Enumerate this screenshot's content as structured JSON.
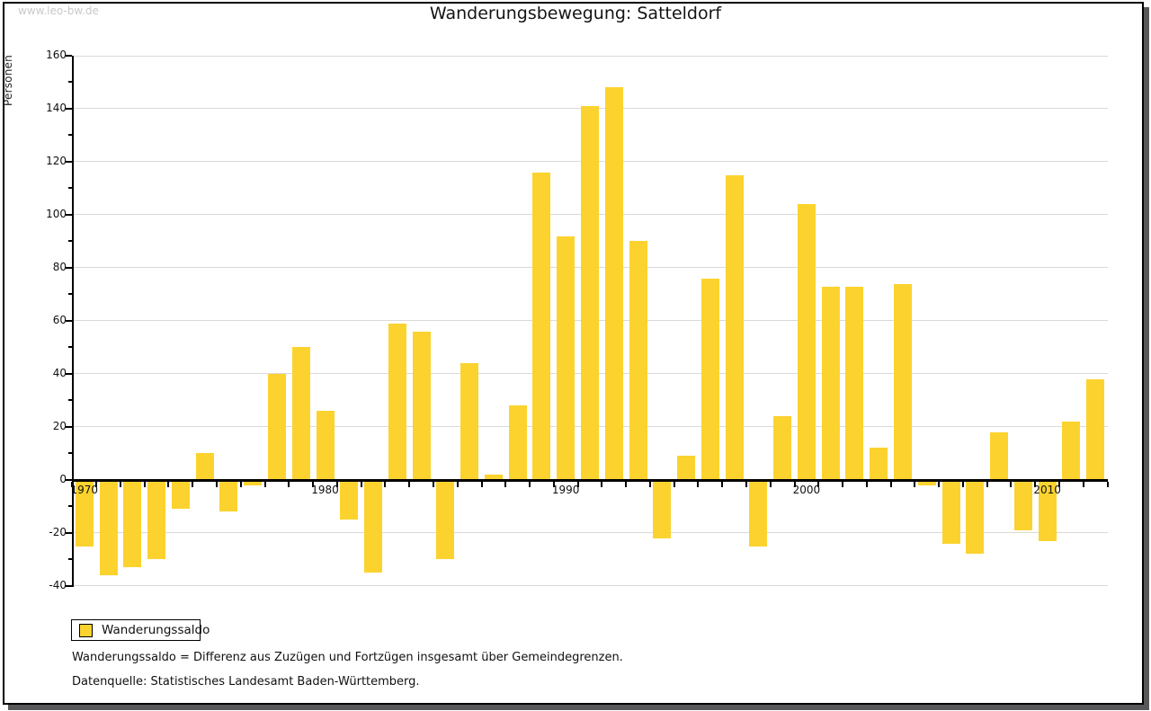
{
  "watermark": "www.leo-bw.de",
  "title": "Wanderungsbewegung: Satteldorf",
  "legend": {
    "label": "Wanderungssaldo",
    "swatch_color": "#fcd32e"
  },
  "footnotes": [
    "Wanderungssaldo = Differenz aus Zuzügen und Fortzügen insgesamt über Gemeindegrenzen.",
    "Datenquelle: Statistisches Landesamt Baden-Württemberg."
  ],
  "chart_data": {
    "type": "bar",
    "title": "Wanderungsbewegung: Satteldorf",
    "xlabel": "",
    "ylabel": "Personen",
    "series_name": "Wanderungssaldo",
    "bar_color": "#fcd32e",
    "grid": true,
    "legend_position": "bottom-left",
    "ylim": [
      -40,
      160
    ],
    "ytick_interval": 20,
    "yticks": [
      160,
      140,
      120,
      100,
      80,
      60,
      40,
      20,
      0,
      -20,
      -40
    ],
    "xticks": [
      1970,
      1980,
      1990,
      2000,
      2010
    ],
    "x": [
      1970,
      1971,
      1972,
      1973,
      1974,
      1975,
      1976,
      1977,
      1978,
      1979,
      1980,
      1981,
      1982,
      1983,
      1984,
      1985,
      1986,
      1987,
      1988,
      1989,
      1990,
      1991,
      1992,
      1993,
      1994,
      1995,
      1996,
      1997,
      1998,
      1999,
      2000,
      2001,
      2002,
      2003,
      2004,
      2005,
      2006,
      2007,
      2008,
      2009,
      2010,
      2011,
      2012
    ],
    "values": [
      -25,
      -36,
      -33,
      -30,
      -11,
      10,
      -12,
      -2,
      40,
      50,
      26,
      -15,
      -35,
      59,
      56,
      -30,
      44,
      2,
      28,
      116,
      92,
      141,
      148,
      90,
      -22,
      9,
      76,
      115,
      -25,
      24,
      104,
      73,
      73,
      12,
      74,
      -2,
      -24,
      -28,
      18,
      -19,
      -23,
      22,
      38
    ]
  }
}
